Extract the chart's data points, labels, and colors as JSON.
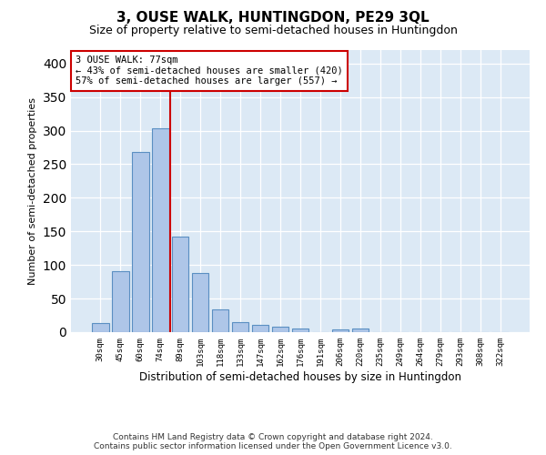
{
  "title": "3, OUSE WALK, HUNTINGDON, PE29 3QL",
  "subtitle": "Size of property relative to semi-detached houses in Huntingdon",
  "xlabel": "Distribution of semi-detached houses by size in Huntingdon",
  "ylabel": "Number of semi-detached properties",
  "categories": [
    "30sqm",
    "45sqm",
    "60sqm",
    "74sqm",
    "89sqm",
    "103sqm",
    "118sqm",
    "133sqm",
    "147sqm",
    "162sqm",
    "176sqm",
    "191sqm",
    "206sqm",
    "220sqm",
    "235sqm",
    "249sqm",
    "264sqm",
    "279sqm",
    "293sqm",
    "308sqm",
    "322sqm"
  ],
  "values": [
    13,
    91,
    268,
    304,
    142,
    88,
    34,
    15,
    11,
    8,
    5,
    0,
    4,
    5,
    0,
    0,
    0,
    0,
    0,
    0,
    0
  ],
  "bar_color": "#aec6e8",
  "bar_edge_color": "#5a8fc2",
  "property_line_color": "#cc0000",
  "annotation_line1": "3 OUSE WALK: 77sqm",
  "annotation_line2": "← 43% of semi-detached houses are smaller (420)",
  "annotation_line3": "57% of semi-detached houses are larger (557) →",
  "annotation_box_color": "#ffffff",
  "annotation_box_edge": "#cc0000",
  "ylim": [
    0,
    420
  ],
  "yticks": [
    0,
    50,
    100,
    150,
    200,
    250,
    300,
    350,
    400
  ],
  "plot_bg_color": "#dce9f5",
  "footer_line1": "Contains HM Land Registry data © Crown copyright and database right 2024.",
  "footer_line2": "Contains public sector information licensed under the Open Government Licence v3.0."
}
